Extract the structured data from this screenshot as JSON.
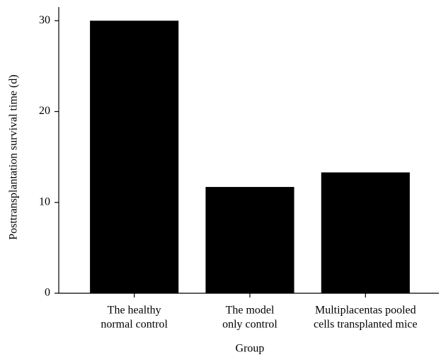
{
  "chart_data": {
    "type": "bar",
    "ylabel": "Posttransplantation survival time (d)",
    "xlabel": "Group",
    "categories": [
      [
        "The healthy",
        "normal control"
      ],
      [
        "The model",
        "only control"
      ],
      [
        "Multiplacentas pooled",
        "cells transplanted mice"
      ]
    ],
    "values": [
      30,
      11.7,
      13.3
    ],
    "color": "#000000",
    "ylim": [
      0,
      31.5
    ],
    "yticks": [
      0,
      10,
      20,
      30
    ],
    "grid": false
  }
}
